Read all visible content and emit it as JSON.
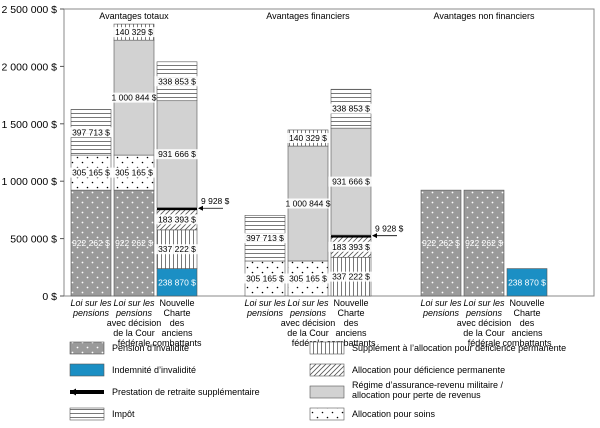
{
  "chart_data": {
    "type": "bar",
    "stacked": true,
    "ylim": [
      0,
      2500000
    ],
    "yticks": [
      0,
      500000,
      1000000,
      1500000,
      2000000,
      2500000
    ],
    "ytick_labels": [
      "0 $",
      "500 000 $",
      "1 000 000 $",
      "1 500 000 $",
      "2 000 000 $",
      "2 500 000 $"
    ],
    "groups": [
      {
        "title": "Avantages totaux",
        "bars": [
          {
            "label": [
              "Loi sur les",
              "pensions"
            ],
            "segments": [
              {
                "series": "pension",
                "value": 922262,
                "label": "922 262 $"
              },
              {
                "series": "soins",
                "value": 305165,
                "label": "305 165 $"
              },
              {
                "series": "impot",
                "value": 397713,
                "label": "397 713 $"
              }
            ]
          },
          {
            "label": [
              "Loi sur les",
              "pensions",
              "avec décision",
              "de la Cour",
              "fédérale"
            ],
            "segments": [
              {
                "series": "pension",
                "value": 922262,
                "label": "922 262 $"
              },
              {
                "series": "soins",
                "value": 305165,
                "label": "305 165 $"
              },
              {
                "series": "rarm",
                "value": 1000844,
                "label": "1 000 844 $"
              },
              {
                "series": "supplement",
                "value": 140329,
                "label": "140 329 $"
              }
            ]
          },
          {
            "label": [
              "Nouvelle",
              "Charte",
              "des",
              "anciens",
              "combattants"
            ],
            "segments": [
              {
                "series": "indemnite",
                "value": 238870,
                "label": "238 870 $"
              },
              {
                "series": "supplement",
                "value": 337222,
                "label": "337 222 $"
              },
              {
                "series": "allocation",
                "value": 183393,
                "label": "183 393 $"
              },
              {
                "series": "retraite",
                "value": 9928,
                "label": "9 928 $"
              },
              {
                "series": "rarm",
                "value": 931666,
                "label": "931 666 $"
              },
              {
                "series": "impot",
                "value": 338853,
                "label": "338 853 $"
              }
            ]
          }
        ]
      },
      {
        "title": "Avantages financiers",
        "bars": [
          {
            "label": [
              "Loi sur les",
              "pensions"
            ],
            "segments": [
              {
                "series": "soins",
                "value": 305165,
                "label": "305 165 $"
              },
              {
                "series": "impot",
                "value": 397713,
                "label": "397 713 $"
              }
            ]
          },
          {
            "label": [
              "Loi sur les",
              "pensions",
              "avec décision",
              "de la Cour",
              "fédérale"
            ],
            "segments": [
              {
                "series": "soins",
                "value": 305165,
                "label": "305 165 $"
              },
              {
                "series": "rarm",
                "value": 1000844,
                "label": "1 000 844 $"
              },
              {
                "series": "supplement",
                "value": 140329,
                "label": "140 329 $"
              }
            ]
          },
          {
            "label": [
              "Nouvelle",
              "Charte",
              "des",
              "anciens",
              "combattants"
            ],
            "segments": [
              {
                "series": "supplement",
                "value": 337222,
                "label": "337 222 $"
              },
              {
                "series": "allocation",
                "value": 183393,
                "label": "183 393 $"
              },
              {
                "series": "retraite",
                "value": 9928,
                "label": "9 928 $"
              },
              {
                "series": "rarm",
                "value": 931666,
                "label": "931 666 $"
              },
              {
                "series": "impot",
                "value": 338853,
                "label": "338 853 $"
              }
            ]
          }
        ]
      },
      {
        "title": "Avantages non financiers",
        "bars": [
          {
            "label": [
              "Loi sur les",
              "pensions"
            ],
            "segments": [
              {
                "series": "pension",
                "value": 922262,
                "label": "922 262 $"
              }
            ]
          },
          {
            "label": [
              "Loi sur les",
              "pensions",
              "avec décision",
              "de la Cour",
              "fédérale"
            ],
            "segments": [
              {
                "series": "pension",
                "value": 922262,
                "label": "922 262 $"
              }
            ]
          },
          {
            "label": [
              "Nouvelle",
              "Charte",
              "des",
              "anciens",
              "combattants"
            ],
            "segments": [
              {
                "series": "indemnite",
                "value": 238870,
                "label": "238 870 $"
              }
            ]
          }
        ]
      }
    ],
    "legend": [
      {
        "series": "pension",
        "label": [
          "Pension d’invalidité"
        ]
      },
      {
        "series": "supplement",
        "label": [
          "Supplément à l’allocation pour déficience permanente"
        ]
      },
      {
        "series": "indemnite",
        "label": [
          "Indemnité d’invalidité"
        ]
      },
      {
        "series": "allocation",
        "label": [
          "Allocation pour déficience permanente"
        ]
      },
      {
        "series": "retraite",
        "label": [
          "Prestation de retraite supplémentaire"
        ]
      },
      {
        "series": "rarm",
        "label": [
          "Régime d’assurance-revenu militaire /",
          "allocation pour perte de revenus"
        ]
      },
      {
        "series": "impot",
        "label": [
          "Impôt"
        ]
      },
      {
        "series": "soins",
        "label": [
          "Allocation pour soins"
        ]
      }
    ]
  }
}
